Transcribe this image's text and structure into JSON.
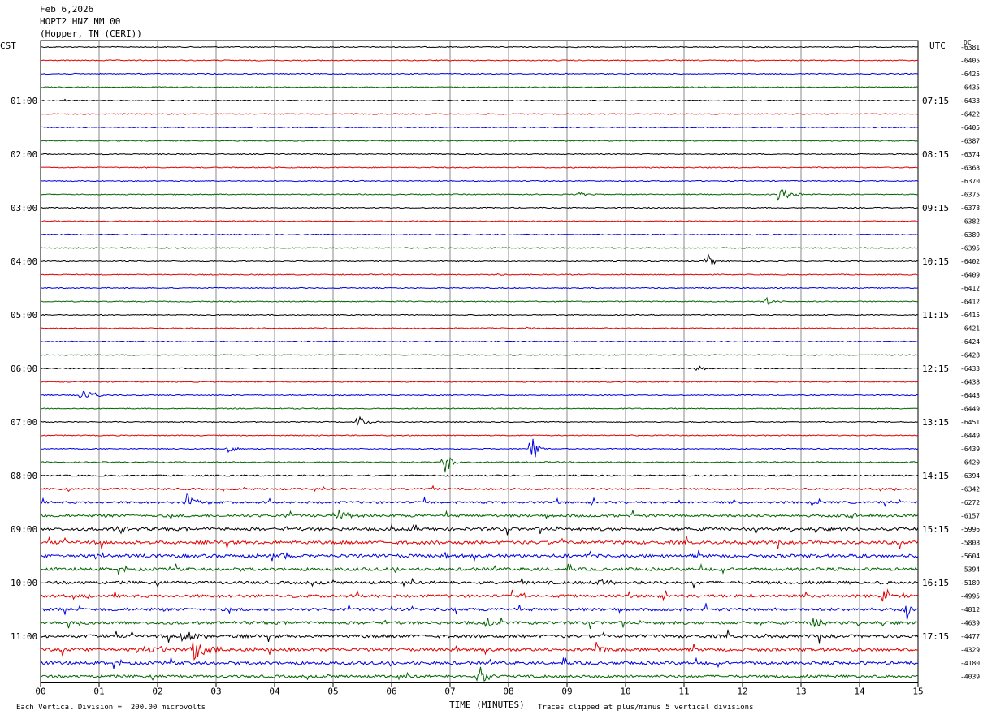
{
  "header": {
    "date": "Feb 6,2026",
    "station": "HOPT2 HNZ NM 00",
    "location": "(Hopper, TN (CERI))"
  },
  "left_axis_label": "CST",
  "right_axis_label": "UTC",
  "dc_label": "DC",
  "colors": {
    "black": "#000000",
    "red": "#e00000",
    "blue": "#0000e0",
    "green": "#006400",
    "grid": "#888888"
  },
  "chart_data": {
    "type": "line",
    "title": "",
    "xlabel": "TIME (MINUTES)",
    "x_ticks": [
      "00",
      "01",
      "02",
      "03",
      "04",
      "05",
      "06",
      "07",
      "08",
      "09",
      "10",
      "11",
      "12",
      "13",
      "14",
      "15"
    ],
    "xlim": [
      0,
      15
    ],
    "trace_minutes": 15,
    "trace_colors": [
      "black",
      "red",
      "blue",
      "green"
    ],
    "cst_labels": [
      {
        "trace": 4,
        "text": "01:00"
      },
      {
        "trace": 8,
        "text": "02:00"
      },
      {
        "trace": 12,
        "text": "03:00"
      },
      {
        "trace": 16,
        "text": "04:00"
      },
      {
        "trace": 20,
        "text": "05:00"
      },
      {
        "trace": 24,
        "text": "06:00"
      },
      {
        "trace": 28,
        "text": "07:00"
      },
      {
        "trace": 32,
        "text": "08:00"
      },
      {
        "trace": 36,
        "text": "09:00"
      },
      {
        "trace": 40,
        "text": "10:00"
      },
      {
        "trace": 44,
        "text": "11:00"
      }
    ],
    "utc_labels": [
      {
        "trace": 4,
        "text": "07:15"
      },
      {
        "trace": 8,
        "text": "08:15"
      },
      {
        "trace": 12,
        "text": "09:15"
      },
      {
        "trace": 16,
        "text": "10:15"
      },
      {
        "trace": 20,
        "text": "11:15"
      },
      {
        "trace": 24,
        "text": "12:15"
      },
      {
        "trace": 28,
        "text": "13:15"
      },
      {
        "trace": 32,
        "text": "14:15"
      },
      {
        "trace": 36,
        "text": "15:15"
      },
      {
        "trace": 40,
        "text": "16:15"
      },
      {
        "trace": 44,
        "text": "17:15"
      }
    ],
    "dc_offsets": [
      "-6381",
      "-6405",
      "-6425",
      "-6435",
      "-6433",
      "-6422",
      "-6405",
      "-6387",
      "-6374",
      "-6368",
      "-6370",
      "-6375",
      "-6378",
      "-6382",
      "-6389",
      "-6395",
      "-6402",
      "-6409",
      "-6412",
      "-6412",
      "-6415",
      "-6421",
      "-6424",
      "-6428",
      "-6433",
      "-6438",
      "-6443",
      "-6449",
      "-6451",
      "-6449",
      "-6439",
      "-6420",
      "-6394",
      "-6342",
      "-6272",
      "-6157",
      "-5996",
      "-5808",
      "-5604",
      "-5394",
      "-5189",
      "-4995",
      "-4812",
      "-4639",
      "-4477",
      "-4329",
      "-4180",
      "-4039"
    ],
    "noise_levels": [
      1,
      1,
      1,
      1,
      1,
      1,
      1,
      1,
      1,
      1,
      1,
      1,
      1,
      1,
      1,
      1,
      1,
      1,
      1,
      1,
      1,
      1,
      1,
      1,
      1,
      1,
      1,
      1,
      1,
      1,
      1,
      1.2,
      1.5,
      1.8,
      2.2,
      2.6,
      3.0,
      3.2,
      3.2,
      3.0,
      2.9,
      2.9,
      2.9,
      3.0,
      3.2,
      3.2,
      3.0,
      2.6
    ],
    "events": [
      {
        "trace": 4,
        "minute": 0.4,
        "amp": 3,
        "dur": 0.3
      },
      {
        "trace": 11,
        "minute": 9.2,
        "amp": 4,
        "dur": 0.4
      },
      {
        "trace": 11,
        "minute": 12.6,
        "amp": 8,
        "dur": 0.9
      },
      {
        "trace": 16,
        "minute": 11.4,
        "amp": 9,
        "dur": 0.5
      },
      {
        "trace": 17,
        "minute": 7.8,
        "amp": 3,
        "dur": 0.3
      },
      {
        "trace": 19,
        "minute": 12.4,
        "amp": 6,
        "dur": 0.6
      },
      {
        "trace": 21,
        "minute": 8.3,
        "amp": 3,
        "dur": 0.3
      },
      {
        "trace": 22,
        "minute": 1.7,
        "amp": 2,
        "dur": 0.3
      },
      {
        "trace": 24,
        "minute": 11.2,
        "amp": 7,
        "dur": 0.4
      },
      {
        "trace": 26,
        "minute": 0.7,
        "amp": 12,
        "dur": 0.6
      },
      {
        "trace": 28,
        "minute": 5.4,
        "amp": 11,
        "dur": 0.5
      },
      {
        "trace": 30,
        "minute": 3.2,
        "amp": 5,
        "dur": 0.6
      },
      {
        "trace": 30,
        "minute": 8.4,
        "amp": 28,
        "dur": 0.25
      },
      {
        "trace": 31,
        "minute": 6.9,
        "amp": 18,
        "dur": 0.4
      },
      {
        "trace": 34,
        "minute": 2.5,
        "amp": 14,
        "dur": 0.5
      },
      {
        "trace": 35,
        "minute": 5.1,
        "amp": 8,
        "dur": 0.5
      },
      {
        "trace": 35,
        "minute": 13.8,
        "amp": 8,
        "dur": 0.6
      },
      {
        "trace": 36,
        "minute": 1.3,
        "amp": 8,
        "dur": 0.4
      },
      {
        "trace": 38,
        "minute": 4.1,
        "amp": 6,
        "dur": 0.4
      },
      {
        "trace": 40,
        "minute": 9.5,
        "amp": 11,
        "dur": 0.5
      },
      {
        "trace": 41,
        "minute": 8.2,
        "amp": 7,
        "dur": 0.5
      },
      {
        "trace": 41,
        "minute": 14.4,
        "amp": 6,
        "dur": 0.4
      },
      {
        "trace": 42,
        "minute": 14.8,
        "amp": 18,
        "dur": 0.15
      },
      {
        "trace": 43,
        "minute": 7.6,
        "amp": 5,
        "dur": 0.5
      },
      {
        "trace": 43,
        "minute": 13.2,
        "amp": 10,
        "dur": 0.5
      },
      {
        "trace": 44,
        "minute": 2.4,
        "amp": 14,
        "dur": 0.8
      },
      {
        "trace": 45,
        "minute": 1.9,
        "amp": 12,
        "dur": 0.6
      },
      {
        "trace": 45,
        "minute": 2.6,
        "amp": 16,
        "dur": 0.8
      },
      {
        "trace": 45,
        "minute": 9.5,
        "amp": 12,
        "dur": 0.5
      },
      {
        "trace": 47,
        "minute": 7.5,
        "amp": 14,
        "dur": 0.5
      }
    ]
  },
  "footer": {
    "scale_note": "Each Vertical Division =  200.00 microvolts",
    "clip_note": "Traces clipped at plus/minus 5 vertical divisions"
  }
}
